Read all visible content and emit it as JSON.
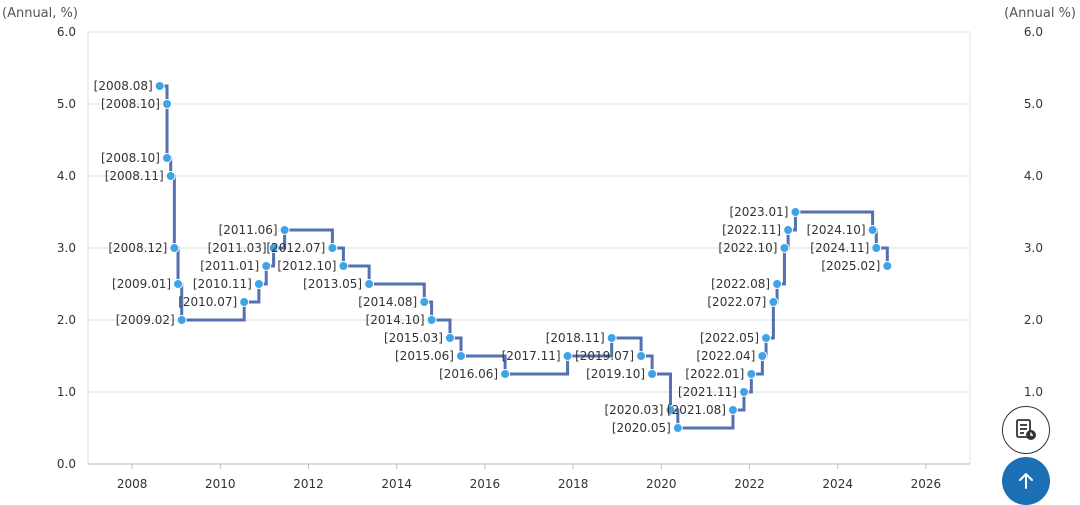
{
  "chart_data": {
    "type": "line",
    "step": true,
    "y_unit_left": "(Annual, %)",
    "y_unit_right": "(Annual %)",
    "ylim": [
      0,
      6
    ],
    "yticks": [
      "6.0",
      "5.0",
      "4.0",
      "3.0",
      "2.0",
      "1.0",
      "0.0"
    ],
    "yticks_right": [
      "6.0",
      "5.0",
      "4.0",
      "3.0",
      "2.0",
      "1.0",
      ""
    ],
    "xlim": [
      2007,
      2027
    ],
    "xticks": [
      "2008",
      "2010",
      "2012",
      "2014",
      "2016",
      "2018",
      "2020",
      "2022",
      "2024",
      "2026"
    ],
    "grid": "horizontal",
    "line_color": "#5470b0",
    "marker_color": "#3fa3e8",
    "series": [
      {
        "points": [
          {
            "x": "2008-08",
            "y": 5.25,
            "label": "[2008.08]"
          },
          {
            "x": "2008-10",
            "y": 5.0,
            "label": "[2008.10]"
          },
          {
            "x": "2008-10",
            "y": 4.25,
            "label": "[2008.10]"
          },
          {
            "x": "2008-11",
            "y": 4.0,
            "label": "[2008.11]"
          },
          {
            "x": "2008-12",
            "y": 3.0,
            "label": "[2008.12]"
          },
          {
            "x": "2009-01",
            "y": 2.5,
            "label": "[2009.01]"
          },
          {
            "x": "2009-02",
            "y": 2.0,
            "label": "[2009.02]"
          },
          {
            "x": "2010-07",
            "y": 2.25,
            "label": "[2010.07]"
          },
          {
            "x": "2010-11",
            "y": 2.5,
            "label": "[2010.11]"
          },
          {
            "x": "2011-01",
            "y": 2.75,
            "label": "[2011.01]"
          },
          {
            "x": "2011-03",
            "y": 3.0,
            "label": "[2011.03]"
          },
          {
            "x": "2011-06",
            "y": 3.25,
            "label": "[2011.06]"
          },
          {
            "x": "2012-07",
            "y": 3.0,
            "label": "[2012.07]"
          },
          {
            "x": "2012-10",
            "y": 2.75,
            "label": "[2012.10]"
          },
          {
            "x": "2013-05",
            "y": 2.5,
            "label": "[2013.05]"
          },
          {
            "x": "2014-08",
            "y": 2.25,
            "label": "[2014.08]"
          },
          {
            "x": "2014-10",
            "y": 2.0,
            "label": "[2014.10]"
          },
          {
            "x": "2015-03",
            "y": 1.75,
            "label": "[2015.03]"
          },
          {
            "x": "2015-06",
            "y": 1.5,
            "label": "[2015.06]"
          },
          {
            "x": "2016-06",
            "y": 1.25,
            "label": "[2016.06]"
          },
          {
            "x": "2017-11",
            "y": 1.5,
            "label": "[2017.11]"
          },
          {
            "x": "2018-11",
            "y": 1.75,
            "label": "[2018.11]"
          },
          {
            "x": "2019-07",
            "y": 1.5,
            "label": "[2019.07]"
          },
          {
            "x": "2019-10",
            "y": 1.25,
            "label": "[2019.10]"
          },
          {
            "x": "2020-03",
            "y": 0.75,
            "label": "[2020.03]"
          },
          {
            "x": "2020-05",
            "y": 0.5,
            "label": "[2020.05]"
          },
          {
            "x": "2021-08",
            "y": 0.75,
            "label": "[2021.08]"
          },
          {
            "x": "2021-11",
            "y": 1.0,
            "label": "[2021.11]"
          },
          {
            "x": "2022-01",
            "y": 1.25,
            "label": "[2022.01]"
          },
          {
            "x": "2022-04",
            "y": 1.5,
            "label": "[2022.04]"
          },
          {
            "x": "2022-05",
            "y": 1.75,
            "label": "[2022.05]"
          },
          {
            "x": "2022-07",
            "y": 2.25,
            "label": "[2022.07]"
          },
          {
            "x": "2022-08",
            "y": 2.5,
            "label": "[2022.08]"
          },
          {
            "x": "2022-10",
            "y": 3.0,
            "label": "[2022.10]"
          },
          {
            "x": "2022-11",
            "y": 3.25,
            "label": "[2022.11]"
          },
          {
            "x": "2023-01",
            "y": 3.5,
            "label": "[2023.01]"
          },
          {
            "x": "2024-10",
            "y": 3.25,
            "label": "[2024.10]"
          },
          {
            "x": "2024-11",
            "y": 3.0,
            "label": "[2024.11]"
          },
          {
            "x": "2025-02",
            "y": 2.75,
            "label": "[2025.02]"
          }
        ]
      }
    ]
  },
  "buttons": {
    "report_icon": "report-schedule-icon",
    "top_icon": "arrow-up-icon"
  }
}
